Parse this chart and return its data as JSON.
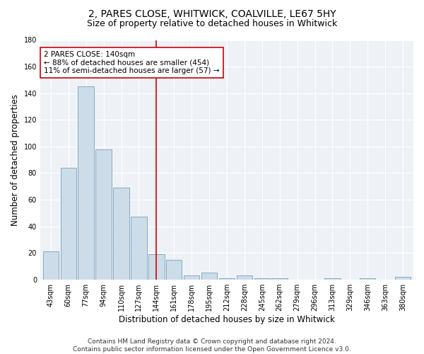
{
  "title": "2, PARES CLOSE, WHITWICK, COALVILLE, LE67 5HY",
  "subtitle": "Size of property relative to detached houses in Whitwick",
  "xlabel": "Distribution of detached houses by size in Whitwick",
  "ylabel": "Number of detached properties",
  "categories": [
    "43sqm",
    "60sqm",
    "77sqm",
    "94sqm",
    "110sqm",
    "127sqm",
    "144sqm",
    "161sqm",
    "178sqm",
    "195sqm",
    "212sqm",
    "228sqm",
    "245sqm",
    "262sqm",
    "279sqm",
    "296sqm",
    "313sqm",
    "329sqm",
    "346sqm",
    "363sqm",
    "380sqm"
  ],
  "values": [
    21,
    84,
    145,
    98,
    69,
    47,
    19,
    15,
    3,
    5,
    1,
    3,
    1,
    1,
    0,
    0,
    1,
    0,
    1,
    0,
    2
  ],
  "bar_color": "#ccdce8",
  "bar_edge_color": "#88aac4",
  "vline_index": 6,
  "vline_color": "#cc0000",
  "annotation_line1": "2 PARES CLOSE: 140sqm",
  "annotation_line2": "← 88% of detached houses are smaller (454)",
  "annotation_line3": "11% of semi-detached houses are larger (57) →",
  "annotation_box_color": "#cc0000",
  "annotation_box_facecolor": "white",
  "ylim": [
    0,
    180
  ],
  "yticks": [
    0,
    20,
    40,
    60,
    80,
    100,
    120,
    140,
    160,
    180
  ],
  "footer_line1": "Contains HM Land Registry data © Crown copyright and database right 2024.",
  "footer_line2": "Contains public sector information licensed under the Open Government Licence v3.0.",
  "background_color": "#ffffff",
  "plot_bg_color": "#eef2f7",
  "grid_color": "#ffffff",
  "title_fontsize": 10,
  "subtitle_fontsize": 9,
  "axis_label_fontsize": 8.5,
  "tick_fontsize": 7,
  "annotation_fontsize": 7.5,
  "footer_fontsize": 6.5
}
